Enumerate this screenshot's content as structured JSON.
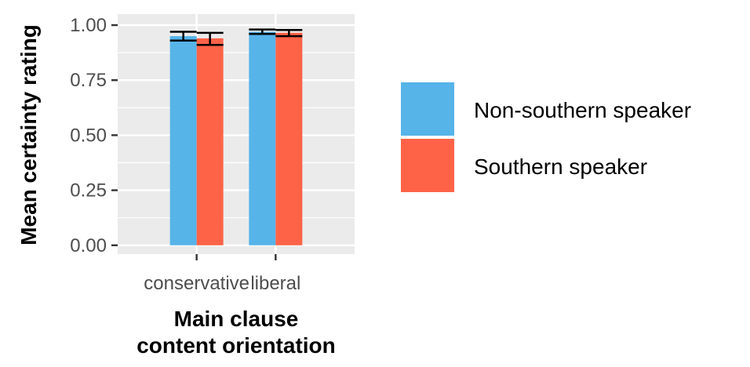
{
  "chart_data": {
    "type": "bar",
    "categories": [
      "conservative",
      "liberal"
    ],
    "series": [
      {
        "name": "Non-southern speaker",
        "values": [
          0.95,
          0.97
        ],
        "err_low": [
          0.93,
          0.96
        ],
        "err_high": [
          0.97,
          0.98
        ],
        "color": "#56B4E9"
      },
      {
        "name": "Southern speaker",
        "values": [
          0.94,
          0.965
        ],
        "err_low": [
          0.91,
          0.95
        ],
        "err_high": [
          0.965,
          0.978
        ],
        "color": "#FF6347"
      }
    ],
    "ylabel": "Mean certainty rating",
    "xlabel_lines": [
      "Main clause",
      "content orientation"
    ],
    "ylim": [
      -0.04,
      1.05
    ],
    "yticks": [
      "0.00",
      "0.25",
      "0.50",
      "0.75",
      "1.00"
    ],
    "ytick_values": [
      0,
      0.25,
      0.5,
      0.75,
      1.0
    ],
    "grid": true,
    "panel_background": "#EBEBEB",
    "legend_position": "right"
  }
}
